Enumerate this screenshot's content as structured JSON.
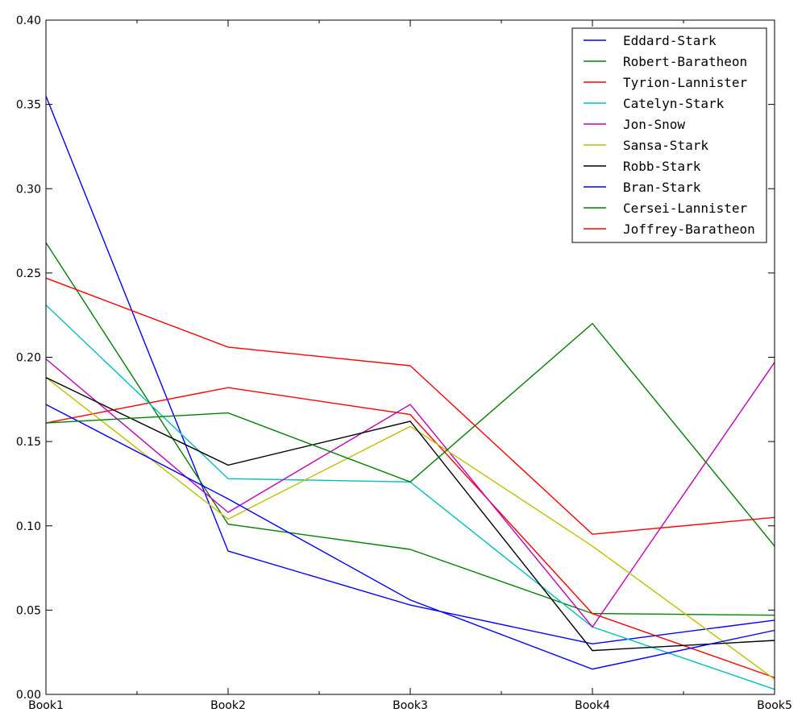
{
  "chart_data": {
    "type": "line",
    "title": "",
    "xlabel": "",
    "ylabel": "",
    "categories": [
      "Book1",
      "Book2",
      "Book3",
      "Book4",
      "Book5"
    ],
    "ylim": [
      0,
      0.4
    ],
    "yticks": [
      "0.00",
      "0.05",
      "0.10",
      "0.15",
      "0.20",
      "0.25",
      "0.30",
      "0.35",
      "0.40"
    ],
    "grid": false,
    "legend_position": "top-right",
    "series": [
      {
        "name": "Eddard-Stark",
        "color": "#0000ff",
        "values": [
          0.355,
          0.085,
          0.053,
          0.03,
          0.044
        ]
      },
      {
        "name": "Robert-Baratheon",
        "color": "#008000",
        "values": [
          0.268,
          0.101,
          0.086,
          0.048,
          0.047
        ]
      },
      {
        "name": "Tyrion-Lannister",
        "color": "#ff0000",
        "values": [
          0.161,
          0.182,
          0.166,
          0.048,
          0.01
        ]
      },
      {
        "name": "Catelyn-Stark",
        "color": "#00bfbf",
        "values": [
          0.231,
          0.128,
          0.126,
          0.04,
          0.003
        ]
      },
      {
        "name": "Jon-Snow",
        "color": "#bf00bf",
        "values": [
          0.199,
          0.108,
          0.172,
          0.04,
          0.197
        ]
      },
      {
        "name": "Sansa-Stark",
        "color": "#bfbf00",
        "values": [
          0.188,
          0.104,
          0.159,
          0.088,
          0.009
        ]
      },
      {
        "name": "Robb-Stark",
        "color": "#000000",
        "values": [
          0.188,
          0.136,
          0.162,
          0.026,
          0.032
        ]
      },
      {
        "name": "Bran-Stark",
        "color": "#0000ff",
        "values": [
          0.172,
          0.116,
          0.056,
          0.015,
          0.038
        ]
      },
      {
        "name": "Cersei-Lannister",
        "color": "#008000",
        "values": [
          0.161,
          0.167,
          0.126,
          0.22,
          0.088
        ]
      },
      {
        "name": "Joffrey-Baratheon",
        "color": "#ff0000",
        "values": [
          0.247,
          0.206,
          0.195,
          0.095,
          0.105
        ]
      }
    ]
  }
}
